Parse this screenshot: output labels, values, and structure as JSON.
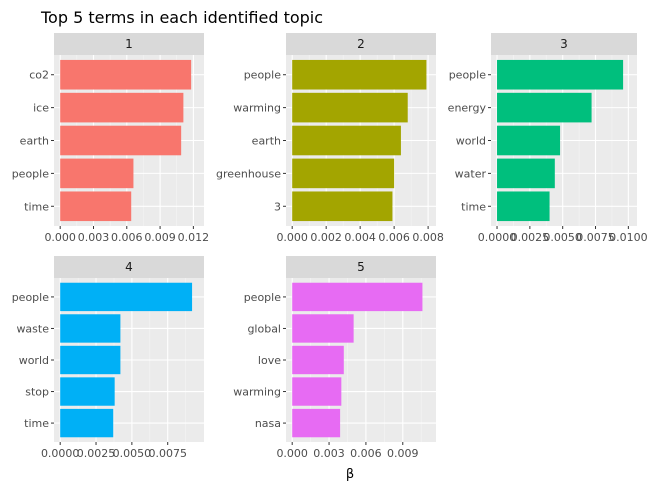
{
  "title": "Top 5 terms in each identified topic",
  "xlabel": "β",
  "chart_data": {
    "type": "bar",
    "title": "Top 5 terms in each identified topic",
    "xlabel": "β",
    "ylabel": "",
    "orientation": "horizontal",
    "grid": true,
    "legend": "none",
    "facets": [
      {
        "label": "1",
        "color": "#F8766D",
        "categories": [
          "co2",
          "ice",
          "earth",
          "people",
          "time"
        ],
        "values": [
          0.0118,
          0.0111,
          0.0109,
          0.0066,
          0.0064
        ],
        "xlim": [
          0,
          0.0124
        ],
        "ticks": [
          0,
          0.003,
          0.006,
          0.009,
          0.012
        ],
        "tick_labels": [
          "0.000",
          "0.003",
          "0.006",
          "0.009",
          "0.012"
        ]
      },
      {
        "label": "2",
        "color": "#A3A500",
        "categories": [
          "people",
          "warming",
          "earth",
          "greenhouse",
          "3"
        ],
        "values": [
          0.0079,
          0.0068,
          0.0064,
          0.006,
          0.0059
        ],
        "xlim": [
          0,
          0.0081
        ],
        "ticks": [
          0,
          0.002,
          0.004,
          0.006,
          0.008
        ],
        "tick_labels": [
          "0.000",
          "0.002",
          "0.004",
          "0.006",
          "0.008"
        ]
      },
      {
        "label": "3",
        "color": "#00BF7D",
        "categories": [
          "people",
          "energy",
          "world",
          "water",
          "time"
        ],
        "values": [
          0.0096,
          0.0072,
          0.0048,
          0.0044,
          0.004
        ],
        "xlim": [
          0,
          0.0102
        ],
        "ticks": [
          0,
          0.0025,
          0.005,
          0.0075,
          0.01
        ],
        "tick_labels": [
          "0.0000",
          "0.0025",
          "0.0050",
          "0.0075",
          "0.0100"
        ]
      },
      {
        "label": "4",
        "color": "#00B0F6",
        "categories": [
          "people",
          "waste",
          "world",
          "stop",
          "time"
        ],
        "values": [
          0.0092,
          0.0042,
          0.0042,
          0.0038,
          0.0037
        ],
        "xlim": [
          0,
          0.0096
        ],
        "ticks": [
          0,
          0.0025,
          0.005,
          0.0075
        ],
        "tick_labels": [
          "0.0000",
          "0.0025",
          "0.0050",
          "0.0075"
        ]
      },
      {
        "label": "5",
        "color": "#E76BF3",
        "categories": [
          "people",
          "global",
          "love",
          "warming",
          "nasa"
        ],
        "values": [
          0.0106,
          0.005,
          0.0042,
          0.004,
          0.0039
        ],
        "xlim": [
          0,
          0.0112
        ],
        "ticks": [
          0,
          0.003,
          0.006,
          0.009
        ],
        "tick_labels": [
          "0.000",
          "0.003",
          "0.006",
          "0.009"
        ]
      }
    ]
  }
}
